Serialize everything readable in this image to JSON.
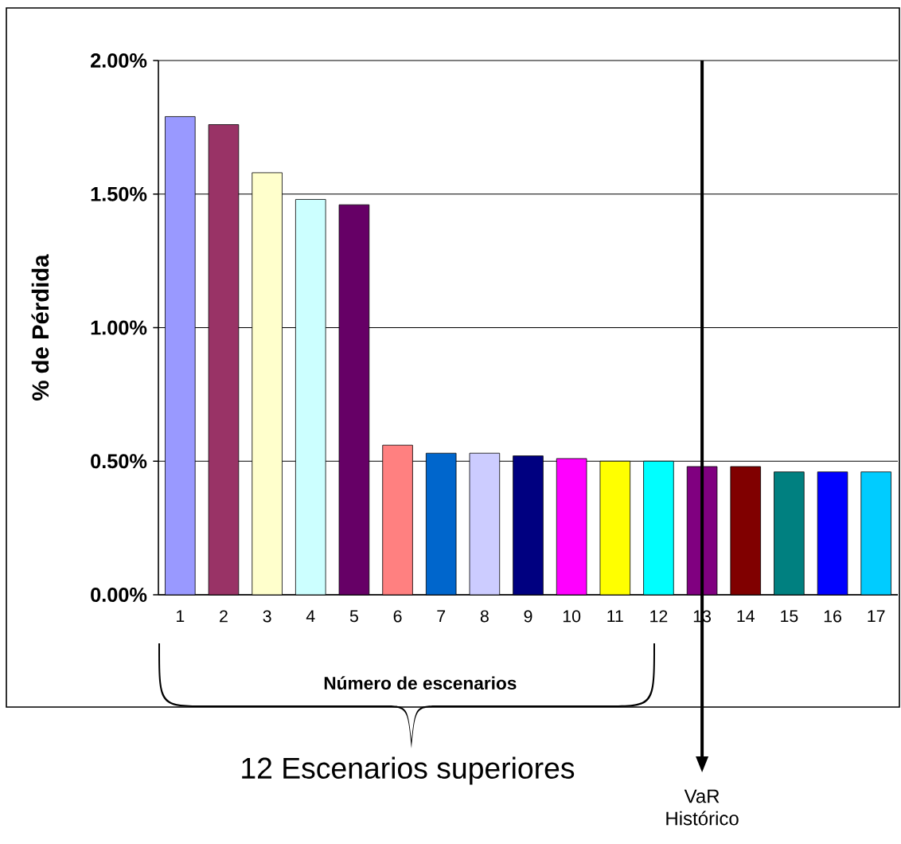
{
  "chart_data": {
    "type": "bar",
    "xlabel": "Número de escenarios",
    "ylabel": "% de Pérdida",
    "categories": [
      "1",
      "2",
      "3",
      "4",
      "5",
      "6",
      "7",
      "8",
      "9",
      "10",
      "11",
      "12",
      "13",
      "14",
      "15",
      "16",
      "17"
    ],
    "values": [
      1.79,
      1.76,
      1.58,
      1.48,
      1.46,
      0.56,
      0.53,
      0.53,
      0.52,
      0.51,
      0.5,
      0.5,
      0.48,
      0.48,
      0.46,
      0.46,
      0.46
    ],
    "colors": [
      "#9999ff",
      "#993366",
      "#ffffcc",
      "#ccffff",
      "#660066",
      "#ff8080",
      "#0066cc",
      "#ccccff",
      "#000080",
      "#ff00ff",
      "#ffff00",
      "#00ffff",
      "#800080",
      "#800000",
      "#008080",
      "#0000ff",
      "#00ccff"
    ],
    "ylim": [
      0,
      2
    ],
    "yticks": [
      {
        "value": 0,
        "label": "0.00%"
      },
      {
        "value": 0.5,
        "label": "0.50%"
      },
      {
        "value": 1,
        "label": "1.00%"
      },
      {
        "value": 1.5,
        "label": "1.50%"
      },
      {
        "value": 2,
        "label": "2.00%"
      }
    ],
    "grid": "y",
    "ref_lines": [
      {
        "axis": "x",
        "value": "13",
        "label": "VaR Histórico",
        "color": "#000000"
      }
    ],
    "annotations": [
      "12 Escenarios superiores"
    ]
  }
}
